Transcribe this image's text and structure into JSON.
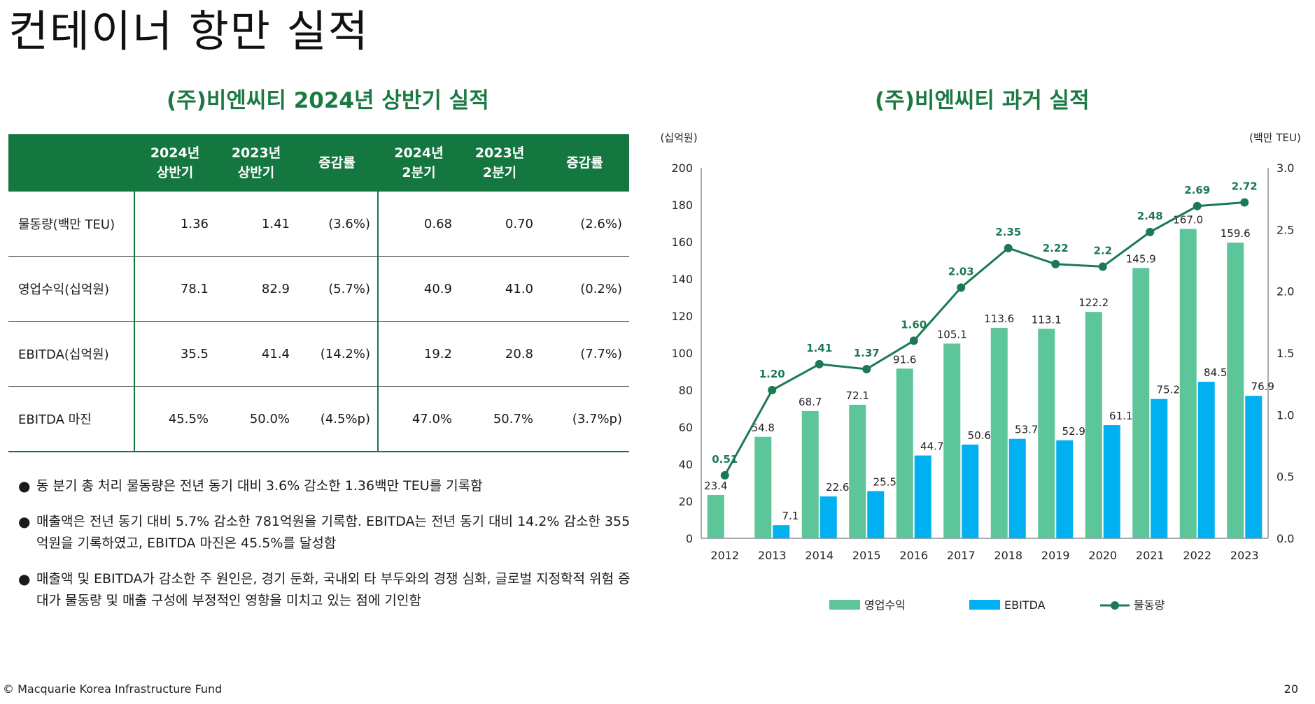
{
  "page": {
    "title": "컨테이너 항만 실적",
    "left_title": "(주)비엔씨티 2024년 상반기 실적",
    "right_title": "(주)비엔씨티 과거 실적",
    "footer_left": "© Macquarie Korea Infrastructure Fund",
    "page_number": "20"
  },
  "table": {
    "headers": [
      {
        "line1": "2024년",
        "line2": "상반기"
      },
      {
        "line1": "2023년",
        "line2": "상반기"
      },
      {
        "line1": "증감률",
        "line2": ""
      },
      {
        "line1": "2024년",
        "line2": "2분기"
      },
      {
        "line1": "2023년",
        "line2": "2분기"
      },
      {
        "line1": "증감률",
        "line2": ""
      }
    ],
    "rows": [
      {
        "label": "물동량(백만 TEU)",
        "cells": [
          "1.36",
          "1.41",
          "(3.6%)",
          "0.68",
          "0.70",
          "(2.6%)"
        ]
      },
      {
        "label": "영업수익(십억원)",
        "cells": [
          "78.1",
          "82.9",
          "(5.7%)",
          "40.9",
          "41.0",
          "(0.2%)"
        ]
      },
      {
        "label": "EBITDA(십억원)",
        "cells": [
          "35.5",
          "41.4",
          "(14.2%)",
          "19.2",
          "20.8",
          "(7.7%)"
        ]
      },
      {
        "label": "EBITDA 마진",
        "cells": [
          "45.5%",
          "50.0%",
          "(4.5%p)",
          "47.0%",
          "50.7%",
          "(3.7%p)"
        ]
      }
    ]
  },
  "bullets": [
    "동 분기 총 처리 물동량은 전년 동기 대비 3.6% 감소한 1.36백만 TEU를 기록함",
    "매출액은 전년 동기 대비 5.7% 감소한 781억원을 기록함. EBITDA는 전년 동기 대비 14.2% 감소한 355억원을 기록하였고, EBITDA 마진은 45.5%를 달성함",
    "매출액 및 EBITDA가 감소한 주 원인은, 경기 둔화, 국내외 타 부두와의 경쟁 심화, 글로벌 지정학적 위험 증대가 물동량 및 매출 구성에 부정적인 영향을 미치고 있는 점에 기인함"
  ],
  "chart_data": {
    "type": "bar",
    "categories": [
      "2012",
      "2013",
      "2014",
      "2015",
      "2016",
      "2017",
      "2018",
      "2019",
      "2020",
      "2021",
      "2022",
      "2023"
    ],
    "series": [
      {
        "name": "영업수익",
        "type": "bar",
        "axis": "left",
        "color": "#5cc59a",
        "values": [
          23.4,
          54.8,
          68.7,
          72.1,
          91.6,
          105.1,
          113.6,
          113.1,
          122.2,
          145.9,
          167.0,
          159.6
        ],
        "labels": [
          "23.4",
          "54.8",
          "68.7",
          "72.1",
          "91.6",
          "105.1",
          "113.6",
          "113.1",
          "122.2",
          "145.9",
          "167.0",
          "159.6"
        ]
      },
      {
        "name": "EBITDA",
        "type": "bar",
        "axis": "left",
        "color": "#00b0f0",
        "values": [
          null,
          7.1,
          22.6,
          25.5,
          44.7,
          50.6,
          53.7,
          52.9,
          61.1,
          75.2,
          84.5,
          76.9
        ],
        "labels": [
          "",
          "7.1",
          "22.6",
          "25.5",
          "44.7",
          "50.6",
          "53.7",
          "52.9",
          "61.1",
          "75.2",
          "84.5",
          "76.9"
        ]
      },
      {
        "name": "물동량",
        "type": "line",
        "axis": "right",
        "color": "#1b7a53",
        "values": [
          0.51,
          1.2,
          1.41,
          1.37,
          1.6,
          2.03,
          2.35,
          2.22,
          2.2,
          2.48,
          2.69,
          2.72
        ],
        "labels": [
          "0.51",
          "1.20",
          "1.41",
          "1.37",
          "1.60",
          "2.03",
          "2.35",
          "2.22",
          "2.2",
          "2.48",
          "2.69",
          "2.72"
        ]
      }
    ],
    "y_left": {
      "label": "(십억원)",
      "min": 0,
      "max": 200,
      "ticks": [
        "0",
        "20",
        "40",
        "60",
        "80",
        "100",
        "120",
        "140",
        "160",
        "180",
        "200"
      ]
    },
    "y_right": {
      "label": "(백만 TEU)",
      "min": 0,
      "max": 3.0,
      "ticks": [
        "0.0",
        "0.5",
        "1.0",
        "1.5",
        "2.0",
        "2.5",
        "3.0"
      ]
    },
    "legend_position": "bottom",
    "grid": false
  }
}
